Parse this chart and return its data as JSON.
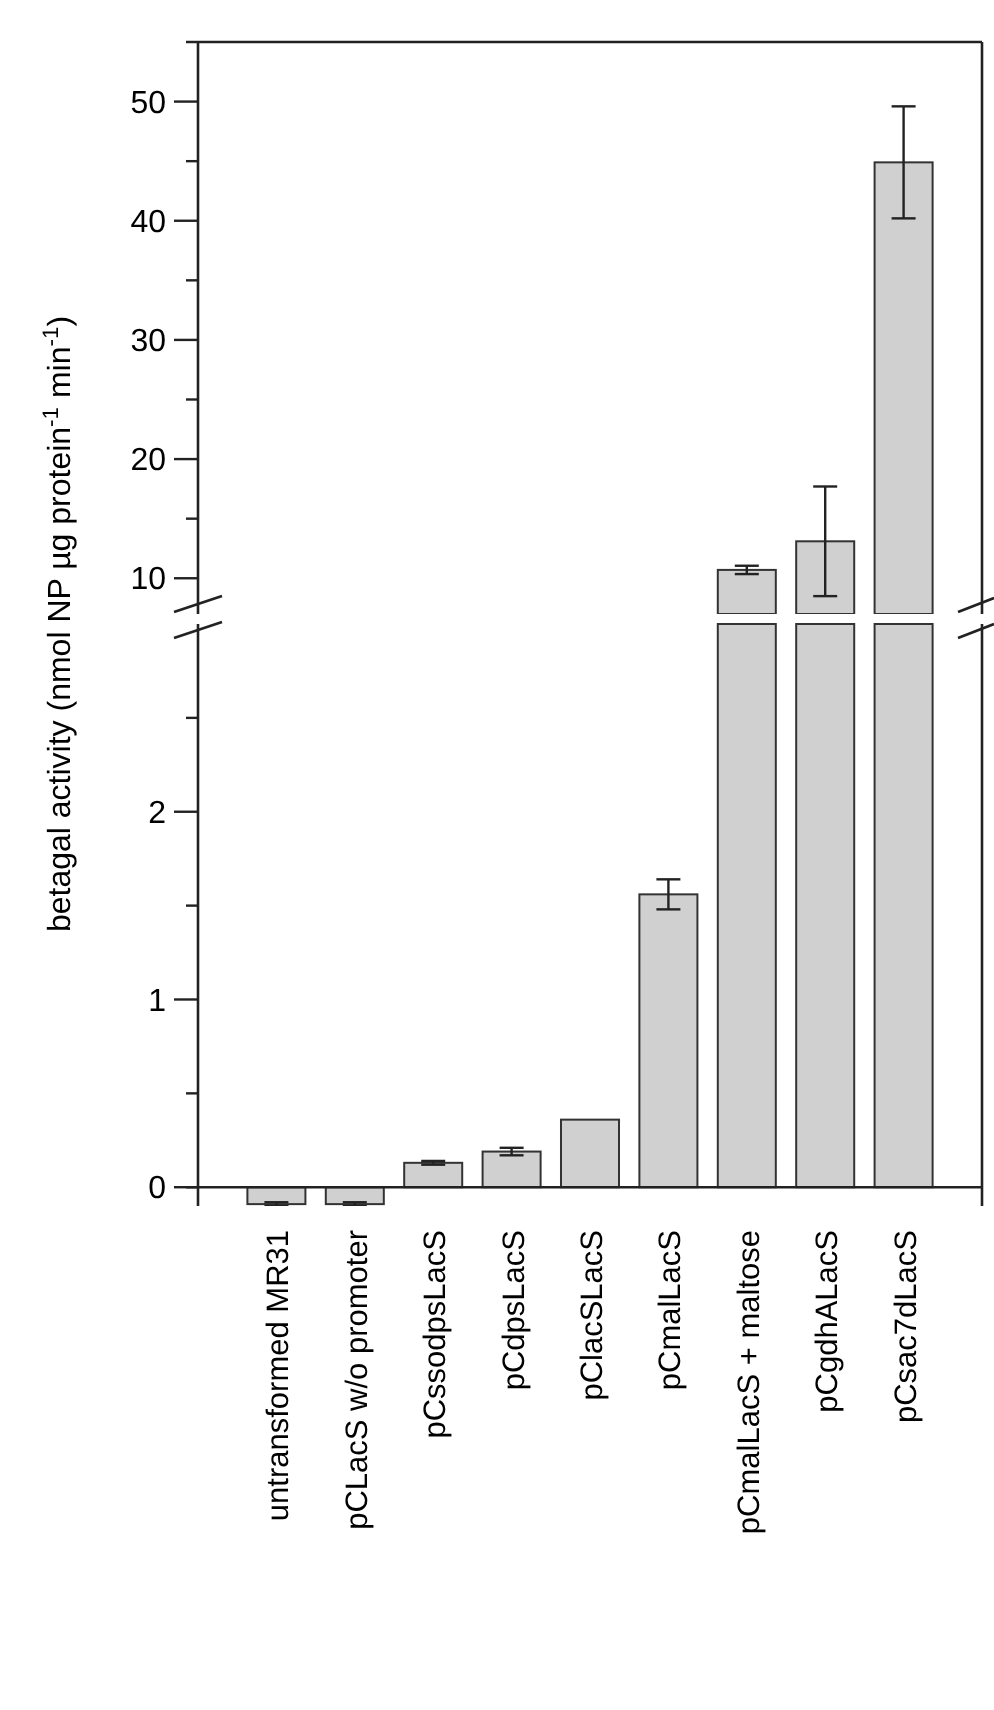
{
  "chart_data": [
    {
      "type": "bar",
      "ylabel": "betagal activity (nmol NP µg protein$^{-1}$ min$^{-1}$)",
      "categories": [
        null,
        null,
        null,
        null,
        null,
        null,
        null,
        null,
        null
      ],
      "color": "#d0d0d0",
      "values": [
        null,
        null,
        null,
        null,
        null,
        null,
        10.7,
        13.1,
        44.9
      ],
      "errors": [
        null,
        null,
        null,
        null,
        null,
        null,
        0.35,
        4.6,
        4.7
      ],
      "ylim": [
        7,
        55
      ],
      "yticks": [
        {
          "value": 10,
          "label": "10"
        },
        {
          "value": 15,
          "label": null
        },
        {
          "value": 20,
          "label": "20"
        },
        {
          "value": 25,
          "label": null
        },
        {
          "value": 30,
          "label": "30"
        },
        {
          "value": 35,
          "label": null
        },
        {
          "value": 40,
          "label": "40"
        },
        {
          "value": 45,
          "label": null
        },
        {
          "value": 50,
          "label": "50"
        }
      ],
      "tick_labels": "y"
    },
    {
      "type": "bar",
      "categories": [
        "untransformed MR31",
        "pCLacS w/o promoter",
        "pCssodpsLacS",
        "pCdpsLacS",
        "pClacSLacS",
        "pCmalLacS",
        "pCmalLacS + maltose",
        "pCgdhALacS",
        "pCsac7dLacS"
      ],
      "color": "#d0d0d0",
      "values": [
        -0.09,
        -0.09,
        0.13,
        0.19,
        0.36,
        1.56,
        null,
        null,
        null
      ],
      "errors": [
        0.01,
        0.01,
        0.01,
        0.02,
        null,
        0.08,
        null,
        null,
        null
      ],
      "ylim": [
        -0.1,
        3
      ],
      "yticks": [
        0,
        {
          "value": 0.5,
          "label": null
        },
        1,
        {
          "value": 1.5,
          "label": null
        },
        2,
        {
          "value": 2.5,
          "label": null
        }
      ]
    }
  ]
}
